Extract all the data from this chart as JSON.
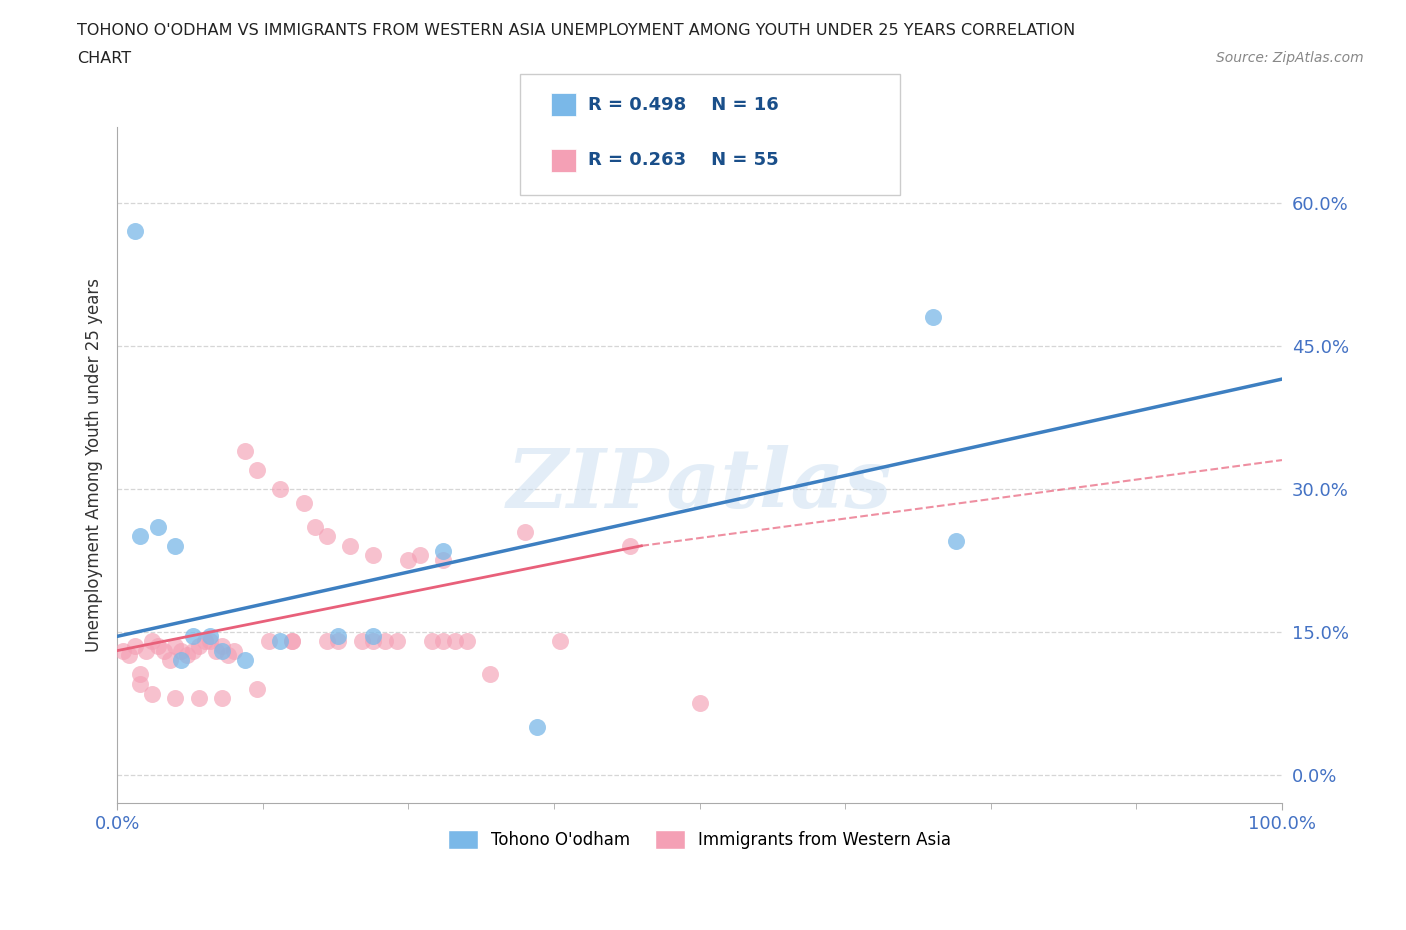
{
  "title_line1": "TOHONO O'ODHAM VS IMMIGRANTS FROM WESTERN ASIA UNEMPLOYMENT AMONG YOUTH UNDER 25 YEARS CORRELATION",
  "title_line2": "CHART",
  "source_text": "Source: ZipAtlas.com",
  "ylabel": "Unemployment Among Youth under 25 years",
  "watermark": "ZIPatlas",
  "xlim": [
    0,
    100
  ],
  "ylim": [
    -3,
    68
  ],
  "yticks": [
    0,
    15,
    30,
    45,
    60
  ],
  "yticklabels": [
    "0.0%",
    "15.0%",
    "30.0%",
    "45.0%",
    "60.0%"
  ],
  "xticks": [
    0,
    100
  ],
  "xticklabels": [
    "0.0%",
    "100.0%"
  ],
  "blue_color": "#7ab8e8",
  "pink_color": "#f4a0b5",
  "blue_line_color": "#3d7fc1",
  "pink_line_color": "#e8607a",
  "legend_label_blue": "Tohono O'odham",
  "legend_label_pink": "Immigrants from Western Asia",
  "blue_R": "0.498",
  "blue_N": "16",
  "pink_R": "0.263",
  "pink_N": "55",
  "blue_x": [
    1.5,
    2.0,
    3.5,
    5.0,
    6.5,
    8.0,
    9.0,
    11.0,
    14.0,
    19.0,
    22.0,
    28.0,
    36.0,
    70.0,
    72.0,
    5.5
  ],
  "blue_y": [
    57.0,
    25.0,
    26.0,
    24.0,
    14.5,
    14.5,
    13.0,
    12.0,
    14.0,
    14.5,
    14.5,
    23.5,
    5.0,
    48.0,
    24.5,
    12.0
  ],
  "pink_x": [
    0.5,
    1.0,
    1.5,
    2.0,
    2.5,
    3.0,
    3.5,
    4.0,
    4.5,
    5.0,
    5.5,
    6.0,
    6.5,
    7.0,
    7.5,
    8.0,
    8.5,
    9.0,
    9.5,
    10.0,
    11.0,
    12.0,
    13.0,
    14.0,
    15.0,
    16.0,
    17.0,
    18.0,
    19.0,
    20.0,
    21.0,
    22.0,
    23.0,
    24.0,
    25.0,
    26.0,
    27.0,
    28.0,
    29.0,
    30.0,
    32.0,
    35.0,
    38.0,
    44.0,
    50.0,
    2.0,
    3.0,
    5.0,
    7.0,
    9.0,
    12.0,
    15.0,
    18.0,
    22.0,
    28.0
  ],
  "pink_y": [
    13.0,
    12.5,
    13.5,
    10.5,
    13.0,
    14.0,
    13.5,
    13.0,
    12.0,
    13.5,
    13.0,
    12.5,
    13.0,
    13.5,
    14.0,
    14.0,
    13.0,
    13.5,
    12.5,
    13.0,
    34.0,
    32.0,
    14.0,
    30.0,
    14.0,
    28.5,
    26.0,
    25.0,
    14.0,
    24.0,
    14.0,
    23.0,
    14.0,
    14.0,
    22.5,
    23.0,
    14.0,
    14.0,
    14.0,
    14.0,
    10.5,
    25.5,
    14.0,
    24.0,
    7.5,
    9.5,
    8.5,
    8.0,
    8.0,
    8.0,
    9.0,
    14.0,
    14.0,
    14.0,
    22.5
  ],
  "blue_line": [
    0,
    100,
    14.5,
    41.5
  ],
  "pink_line_solid": [
    0,
    45,
    13.0,
    24.0
  ],
  "pink_line_dashed": [
    45,
    100,
    24.0,
    33.0
  ],
  "grid_color": "#cccccc",
  "bg_color": "#ffffff",
  "title_color": "#222222",
  "axis_label_color": "#4472c4",
  "tick_label_color": "#4472c4"
}
